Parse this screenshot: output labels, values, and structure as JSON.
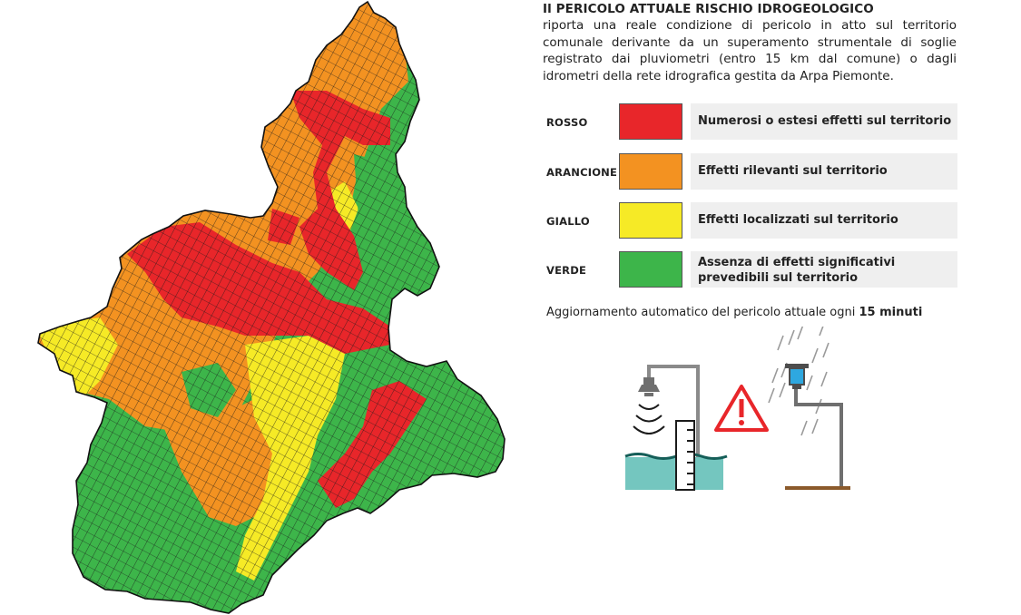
{
  "panel": {
    "title": "Il PERICOLO ATTUALE RISCHIO IDROGEOLOGICO",
    "description": "riporta una reale condizione di pericolo in atto sul territorio comunale derivante da un superamento strumentale di soglie registrato dai pluviometri (entro 15 km dal comune) o dagli idrometri della rete idrografica gestita da Arpa Piemonte."
  },
  "legend": [
    {
      "name": "ROSSO",
      "color": "#e8262a",
      "text": "Numerosi o estesi effetti sul territorio"
    },
    {
      "name": "ARANCIONE",
      "color": "#f39221",
      "text": "Effetti rilevanti sul territorio"
    },
    {
      "name": "GIALLO",
      "color": "#f6ea26",
      "text": "Effetti localizzati sul territorio"
    },
    {
      "name": "VERDE",
      "color": "#3db54a",
      "text": "Assenza di effetti significativi prevedibili sul territorio"
    }
  ],
  "update": {
    "prefix": "Aggiornamento automatico  del pericolo attuale ogni",
    "interval": "15 minuti"
  },
  "illustration": {
    "icons": [
      "hydrometer-icon",
      "warning-triangle-icon",
      "rain-gauge-icon"
    ],
    "water_color": "#74c6bf",
    "warning_color": "#e8262a",
    "gauge_color": "#2ea8e0"
  }
}
